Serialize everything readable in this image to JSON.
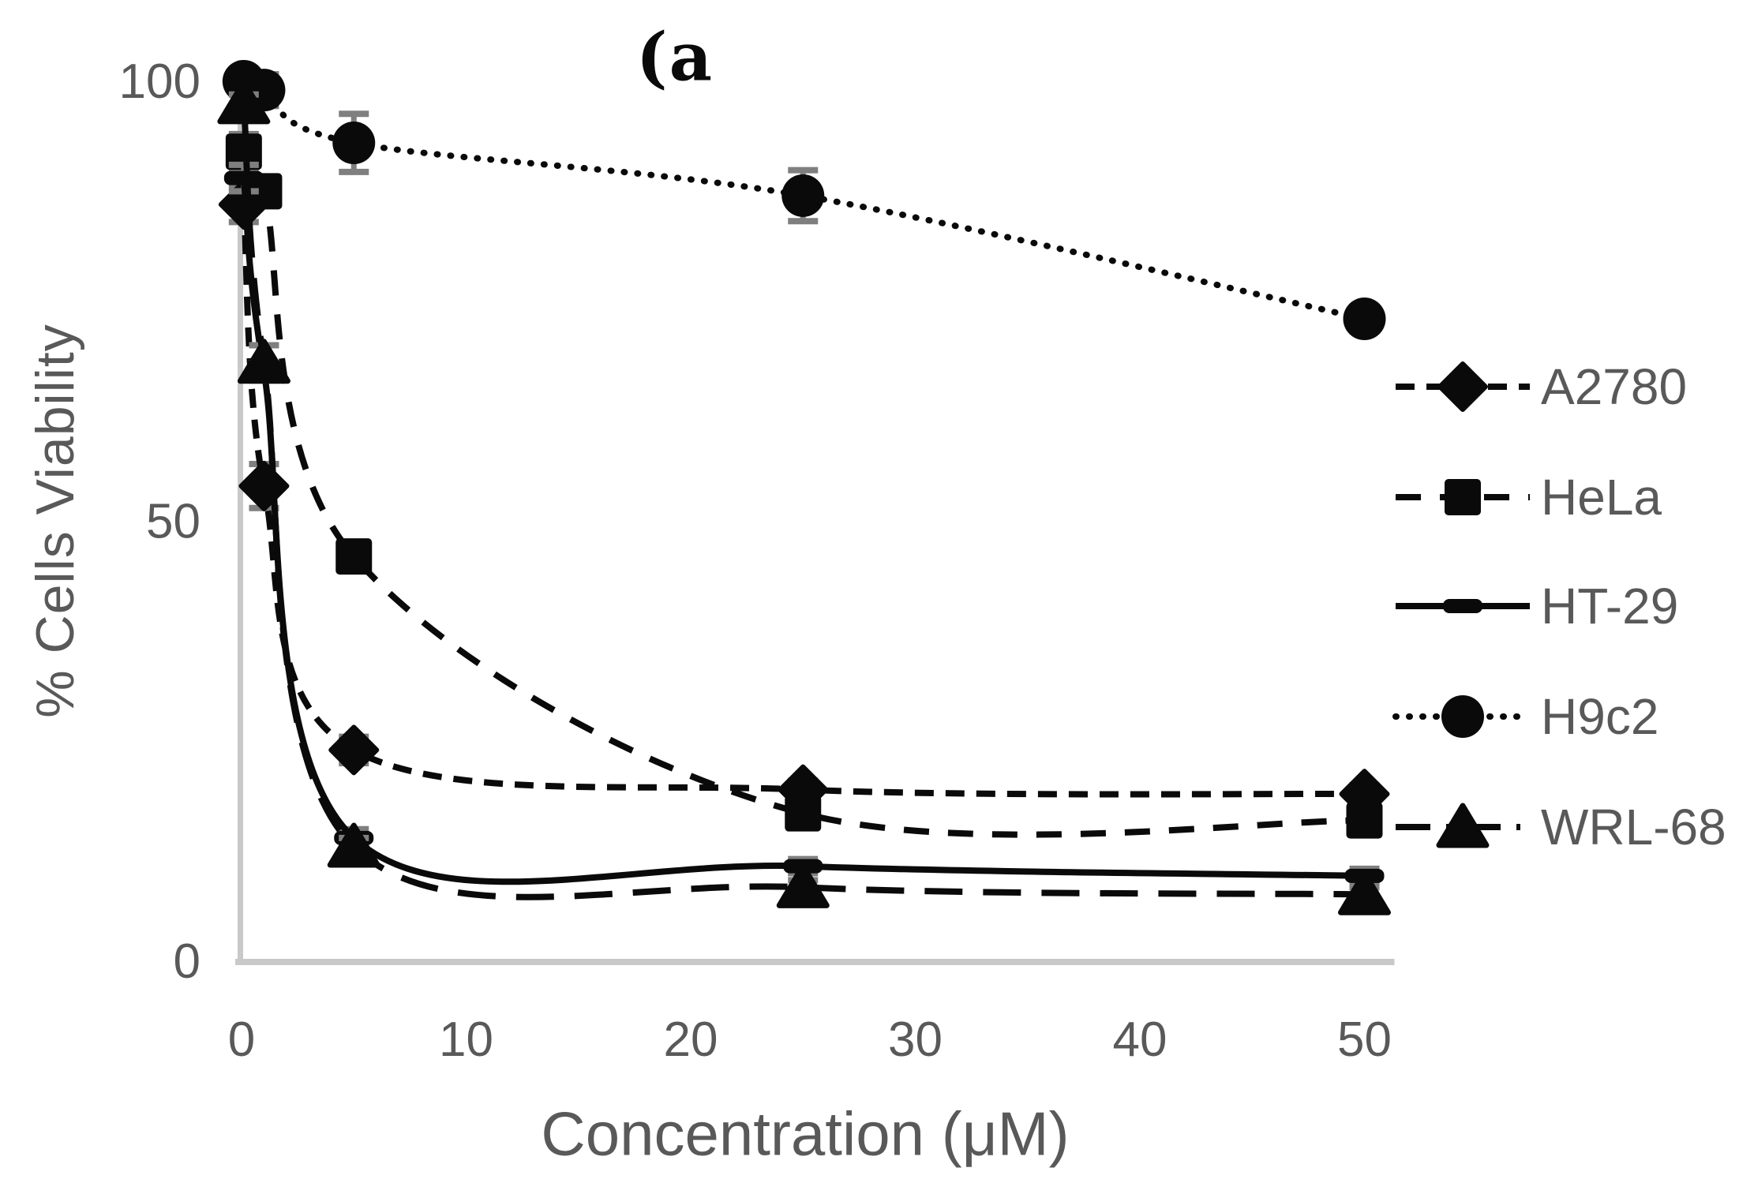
{
  "figure": {
    "panel_label": "(a",
    "background": "#ffffff"
  },
  "chart_data": {
    "type": "line",
    "title": "(a",
    "xlabel": "Concentration (μM)",
    "ylabel": "% Cells Viability",
    "xlim": [
      0,
      50
    ],
    "ylim": [
      0,
      100
    ],
    "x_ticks": [
      0,
      10,
      20,
      30,
      40,
      50
    ],
    "y_ticks": [
      0,
      50,
      100
    ],
    "grid": false,
    "legend_position": "right",
    "x": [
      0.1,
      1,
      5,
      25,
      50
    ],
    "series": [
      {
        "name": "A2780",
        "marker": "diamond",
        "line": "dash",
        "values": [
          86,
          54,
          24,
          19.5,
          19
        ],
        "errors": [
          2,
          2.5,
          1.5,
          1,
          1
        ]
      },
      {
        "name": "HeLa",
        "marker": "square",
        "line": "dash-large",
        "values": [
          92,
          87.5,
          46,
          16.8,
          16
        ],
        "errors": [
          2,
          1.5,
          1.2,
          1,
          1
        ]
      },
      {
        "name": "HT-29",
        "marker": "dash-square",
        "line": "solid",
        "values": [
          89,
          67,
          14,
          10.8,
          9.7
        ],
        "errors": [
          1.5,
          1,
          1,
          0.8,
          0.8
        ]
      },
      {
        "name": "H9c2",
        "marker": "circle",
        "line": "dot",
        "values": [
          100,
          99,
          93,
          87,
          73
        ],
        "errors": [
          1,
          1.8,
          3.3,
          2.9,
          1
        ]
      },
      {
        "name": "WRL-68",
        "marker": "triangle",
        "line": "long-dash",
        "values": [
          97.5,
          68,
          13,
          8.4,
          7.6
        ],
        "errors": [
          1,
          2,
          1,
          0.8,
          0.8
        ]
      }
    ],
    "colors": {
      "series": "#0a0a0a",
      "axis_line": "#c9c9c9",
      "tick_text": "#595959",
      "legend_text": "#595959",
      "error_bar": "#7f7f7f",
      "title_text": "#0a0a0a"
    }
  }
}
